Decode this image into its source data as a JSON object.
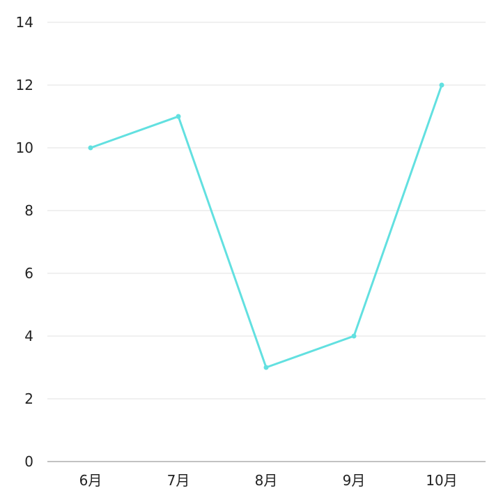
{
  "chart_data": {
    "type": "line",
    "title": "",
    "xlabel": "",
    "ylabel": "",
    "categories": [
      "6月",
      "7月",
      "8月",
      "9月",
      "10月"
    ],
    "series": [
      {
        "values": [
          10,
          11,
          3,
          4,
          12
        ],
        "color": "#62e0e0"
      }
    ],
    "ylim": [
      0,
      14
    ],
    "yticks": [
      0,
      2,
      4,
      6,
      8,
      10,
      12,
      14
    ],
    "grid": true,
    "legend": "none"
  }
}
